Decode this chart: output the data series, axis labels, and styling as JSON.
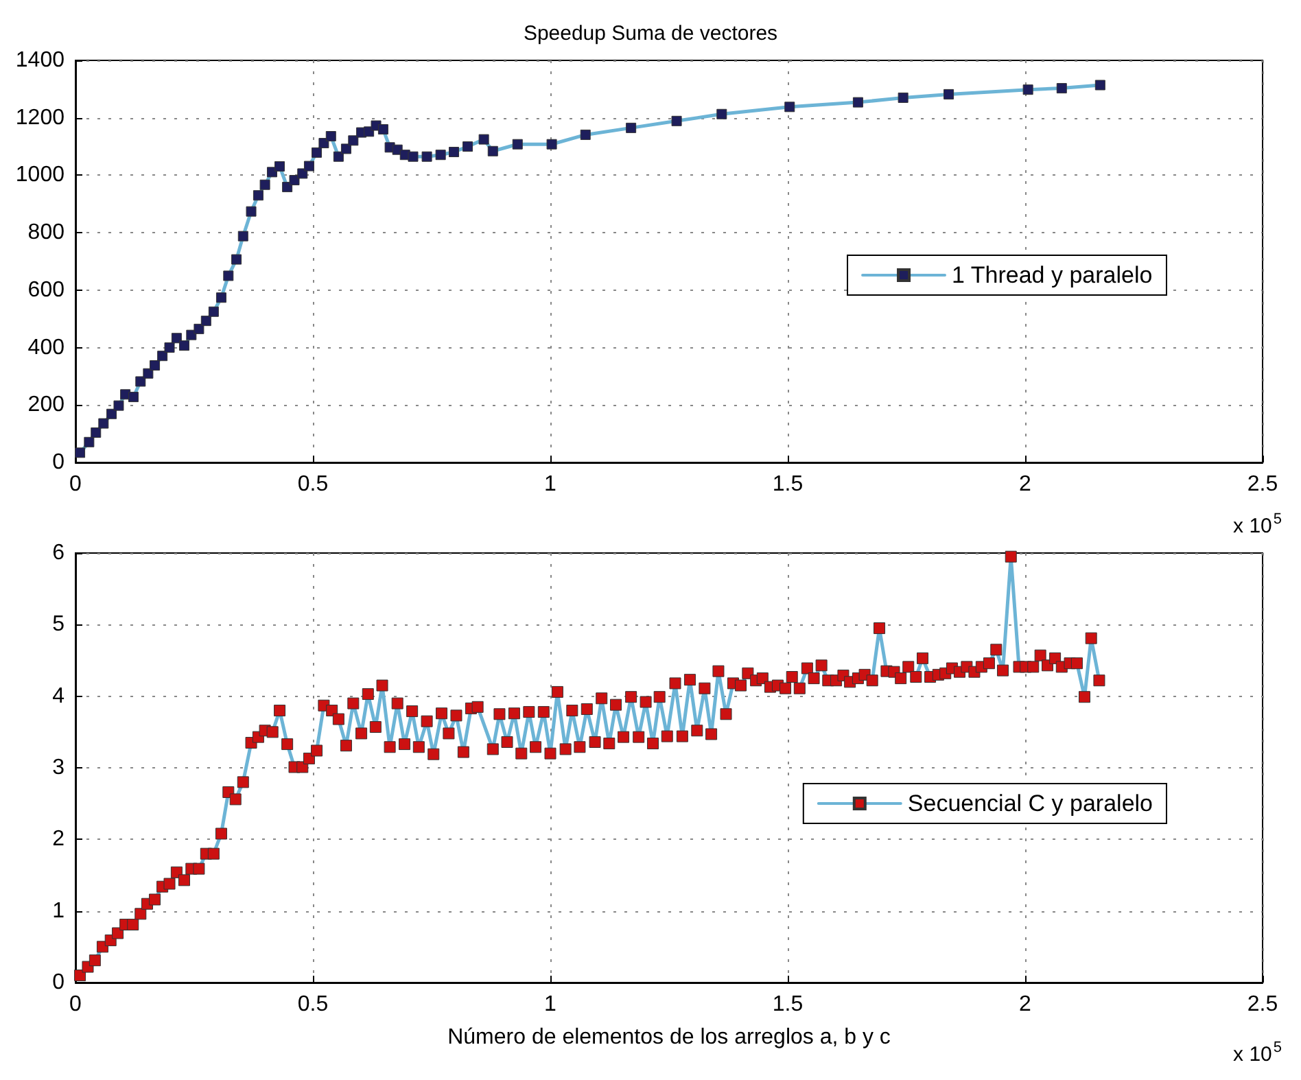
{
  "chart_data": [
    {
      "type": "line",
      "title": "Speedup Suma de vectores",
      "xlim": [
        0,
        2.5
      ],
      "xticks": [
        0,
        0.5,
        1,
        1.5,
        2,
        2.5
      ],
      "ylim": [
        0,
        1400
      ],
      "yticks": [
        0,
        200,
        400,
        600,
        800,
        1000,
        1200,
        1400
      ],
      "grid": true,
      "legend": "right",
      "marker": "square",
      "line_style": "solid",
      "annotations": [
        "x 10$^{5}$"
      ],
      "series": [
        {
          "name": "1 Thread y paralelo",
          "color": "#1e1e5c",
          "x": [
            0.0095,
            0.0287,
            0.043,
            0.059,
            0.076,
            0.091,
            0.105,
            0.122,
            0.137,
            0.153,
            0.167,
            0.183,
            0.198,
            0.213,
            0.229,
            0.244,
            0.26,
            0.275,
            0.291,
            0.307,
            0.322,
            0.339,
            0.353,
            0.37,
            0.385,
            0.399,
            0.414,
            0.43,
            0.446,
            0.461,
            0.478,
            0.492,
            0.508,
            0.523,
            0.538,
            0.554,
            0.57,
            0.585,
            0.602,
            0.618,
            0.633,
            0.648,
            0.662,
            0.678,
            0.694,
            0.711,
            0.74,
            0.769,
            0.797,
            0.826,
            0.86,
            0.879,
            0.931,
            1.003,
            1.074,
            1.17,
            1.266,
            1.361,
            1.504,
            1.648,
            1.743,
            1.839,
            2.006,
            2.077,
            2.158
          ],
          "values": [
            34,
            71,
            104,
            136,
            169,
            198,
            237,
            228,
            282,
            310,
            338,
            371,
            400,
            433,
            407,
            444,
            465,
            493,
            525,
            574,
            650,
            707,
            788,
            874,
            930,
            967,
            1011,
            1031,
            959,
            983,
            1006,
            1032,
            1079,
            1112,
            1136,
            1065,
            1092,
            1121,
            1149,
            1152,
            1173,
            1160,
            1097,
            1089,
            1071,
            1065,
            1065,
            1071,
            1081,
            1100,
            1125,
            1084,
            1108,
            1108,
            1141,
            1165,
            1189,
            1213,
            1238,
            1254,
            1270,
            1282,
            1298,
            1303,
            1314
          ]
        }
      ]
    },
    {
      "type": "line",
      "xlabel": "Número de elementos de los arreglos a, b y c",
      "xlim": [
        0,
        2.5
      ],
      "xticks": [
        0,
        0.5,
        1,
        1.5,
        2,
        2.5
      ],
      "ylim": [
        0,
        6
      ],
      "yticks": [
        0,
        1,
        2,
        3,
        4,
        5,
        6
      ],
      "grid": true,
      "legend": "right",
      "marker": "square",
      "line_style": "solid",
      "annotations": [
        "x 10$^{5}$"
      ],
      "series": [
        {
          "name": "Secuencial C y paralelo",
          "color": "#cc1111",
          "x": [
            0.0095,
            0.026,
            0.041,
            0.057,
            0.074,
            0.089,
            0.105,
            0.121,
            0.137,
            0.151,
            0.167,
            0.183,
            0.198,
            0.213,
            0.229,
            0.244,
            0.26,
            0.275,
            0.291,
            0.307,
            0.322,
            0.337,
            0.353,
            0.37,
            0.385,
            0.399,
            0.415,
            0.43,
            0.446,
            0.461,
            0.478,
            0.492,
            0.508,
            0.523,
            0.54,
            0.554,
            0.57,
            0.585,
            0.602,
            0.616,
            0.632,
            0.646,
            0.662,
            0.678,
            0.693,
            0.709,
            0.723,
            0.74,
            0.754,
            0.771,
            0.786,
            0.802,
            0.817,
            0.833,
            0.847,
            0.879,
            0.893,
            0.909,
            0.924,
            0.939,
            0.955,
            0.969,
            0.986,
            1.0,
            1.015,
            1.032,
            1.046,
            1.062,
            1.077,
            1.094,
            1.108,
            1.124,
            1.138,
            1.154,
            1.17,
            1.186,
            1.201,
            1.216,
            1.23,
            1.246,
            1.263,
            1.278,
            1.294,
            1.309,
            1.325,
            1.339,
            1.354,
            1.37,
            1.385,
            1.401,
            1.416,
            1.433,
            1.447,
            1.463,
            1.479,
            1.495,
            1.509,
            1.525,
            1.541,
            1.555,
            1.571,
            1.585,
            1.602,
            1.617,
            1.631,
            1.648,
            1.662,
            1.678,
            1.693,
            1.708,
            1.724,
            1.738,
            1.754,
            1.77,
            1.784,
            1.8,
            1.817,
            1.832,
            1.846,
            1.862,
            1.877,
            1.893,
            1.908,
            1.924,
            1.939,
            1.953,
            1.97,
            1.987,
            2.001,
            2.017,
            2.032,
            2.047,
            2.063,
            2.077,
            2.094,
            2.109,
            2.125,
            2.139,
            2.156
          ],
          "values": [
            0.1,
            0.22,
            0.31,
            0.5,
            0.59,
            0.69,
            0.81,
            0.81,
            0.96,
            1.1,
            1.16,
            1.34,
            1.38,
            1.54,
            1.43,
            1.59,
            1.59,
            1.8,
            1.8,
            2.08,
            2.66,
            2.56,
            2.8,
            3.35,
            3.43,
            3.52,
            3.5,
            3.8,
            3.33,
            3.01,
            3.01,
            3.13,
            3.24,
            3.87,
            3.8,
            3.68,
            3.31,
            3.9,
            3.48,
            4.03,
            3.57,
            4.15,
            3.29,
            3.9,
            3.33,
            3.79,
            3.29,
            3.65,
            3.19,
            3.76,
            3.48,
            3.73,
            3.22,
            3.83,
            3.85,
            3.26,
            3.75,
            3.36,
            3.76,
            3.2,
            3.78,
            3.29,
            3.78,
            3.2,
            4.06,
            3.26,
            3.8,
            3.29,
            3.82,
            3.36,
            3.97,
            3.34,
            3.88,
            3.43,
            3.99,
            3.43,
            3.92,
            3.34,
            3.99,
            3.44,
            4.18,
            3.44,
            4.23,
            3.52,
            4.11,
            3.47,
            4.35,
            3.75,
            4.18,
            4.15,
            4.32,
            4.22,
            4.25,
            4.13,
            4.15,
            4.11,
            4.27,
            4.11,
            4.39,
            4.25,
            4.43,
            4.22,
            4.22,
            4.29,
            4.2,
            4.25,
            4.3,
            4.22,
            4.95,
            4.35,
            4.34,
            4.25,
            4.41,
            4.27,
            4.53,
            4.27,
            4.3,
            4.32,
            4.39,
            4.34,
            4.41,
            4.34,
            4.41,
            4.46,
            4.65,
            4.36,
            5.95,
            4.41,
            4.41,
            4.41,
            4.57,
            4.43,
            4.53,
            4.41,
            4.46,
            4.46,
            3.99,
            4.81,
            4.22
          ]
        }
      ]
    }
  ]
}
